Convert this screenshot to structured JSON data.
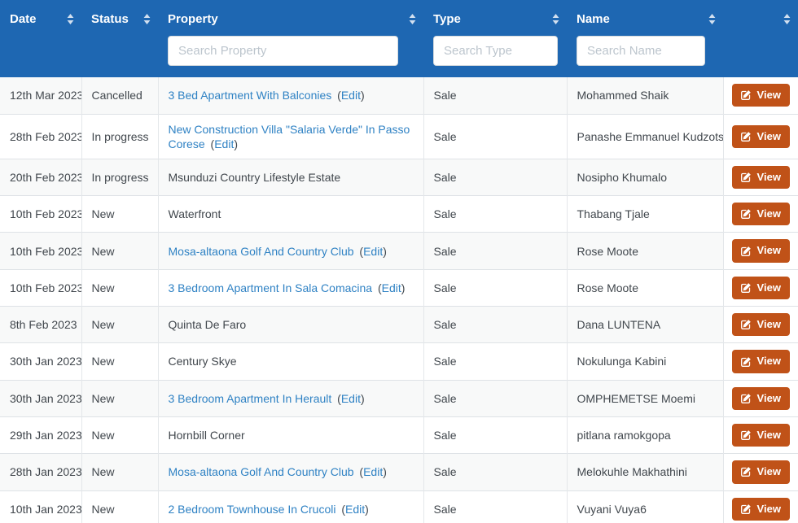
{
  "labels": {
    "edit": "Edit",
    "paren_open": "(",
    "paren_close": ")",
    "view": "View"
  },
  "colors": {
    "header_bg": "#1e67b2",
    "link_blue": "#2f82c4",
    "view_button_bg": "#c05218",
    "stripe_row_bg": "#f8f9f9"
  },
  "table": {
    "columns": [
      {
        "label": "Date",
        "sortable": true
      },
      {
        "label": "Status",
        "sortable": true
      },
      {
        "label": "Property",
        "sortable": true,
        "search_placeholder": "Search Property",
        "search_value": ""
      },
      {
        "label": "Type",
        "sortable": true,
        "search_placeholder": "Search Type",
        "search_value": ""
      },
      {
        "label": "Name",
        "sortable": true,
        "search_placeholder": "Search Name",
        "search_value": ""
      },
      {
        "label": "",
        "sortable": true
      }
    ],
    "rows": [
      {
        "date": "12th Mar 2023",
        "status": "Cancelled",
        "property": "3 Bed Apartment With Balconies",
        "property_is_link": true,
        "type": "Sale",
        "name": "Mohammed Shaik"
      },
      {
        "date": "28th Feb 2023",
        "status": "In progress",
        "property": "New Construction Villa \"Salaria Verde\" In Passo Corese",
        "property_is_link": true,
        "type": "Sale",
        "name": "Panashe Emmanuel Kudzotsa"
      },
      {
        "date": "20th Feb 2023",
        "status": "In progress",
        "property": "Msunduzi Country Lifestyle Estate",
        "property_is_link": false,
        "type": "Sale",
        "name": "Nosipho Khumalo"
      },
      {
        "date": "10th Feb 2023",
        "status": "New",
        "property": "Waterfront",
        "property_is_link": false,
        "type": "Sale",
        "name": "Thabang Tjale"
      },
      {
        "date": "10th Feb 2023",
        "status": "New",
        "property": "Mosa-altaona Golf And Country Club",
        "property_is_link": true,
        "type": "Sale",
        "name": "Rose Moote"
      },
      {
        "date": "10th Feb 2023",
        "status": "New",
        "property": "3 Bedroom Apartment In Sala Comacina",
        "property_is_link": true,
        "type": "Sale",
        "name": "Rose Moote"
      },
      {
        "date": "8th Feb 2023",
        "status": "New",
        "property": "Quinta De Faro",
        "property_is_link": false,
        "type": "Sale",
        "name": "Dana LUNTENA"
      },
      {
        "date": "30th Jan 2023",
        "status": "New",
        "property": "Century Skye",
        "property_is_link": false,
        "type": "Sale",
        "name": "Nokulunga Kabini"
      },
      {
        "date": "30th Jan 2023",
        "status": "New",
        "property": "3 Bedroom Apartment In Herault",
        "property_is_link": true,
        "type": "Sale",
        "name": "OMPHEMETSE Moemi"
      },
      {
        "date": "29th Jan 2023",
        "status": "New",
        "property": "Hornbill Corner",
        "property_is_link": false,
        "type": "Sale",
        "name": "pitlana ramokgopa"
      },
      {
        "date": "28th Jan 2023",
        "status": "New",
        "property": "Mosa-altaona Golf And Country Club",
        "property_is_link": true,
        "type": "Sale",
        "name": "Melokuhle Makhathini"
      },
      {
        "date": "10th Jan 2023",
        "status": "New",
        "property": "2 Bedroom Townhouse In Crucoli",
        "property_is_link": true,
        "type": "Sale",
        "name": "Vuyani Vuya6"
      }
    ]
  }
}
